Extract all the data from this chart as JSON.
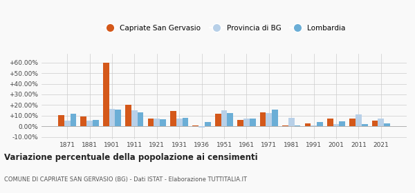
{
  "years": [
    1871,
    1881,
    1901,
    1911,
    1921,
    1931,
    1936,
    1951,
    1961,
    1971,
    1981,
    1991,
    2001,
    2011,
    2021
  ],
  "capriate": [
    10.5,
    9.0,
    59.5,
    20.0,
    7.5,
    14.5,
    0.5,
    11.5,
    6.0,
    13.0,
    1.0,
    2.5,
    7.5,
    7.0,
    5.0
  ],
  "provincia": [
    5.0,
    5.5,
    16.0,
    15.0,
    7.5,
    7.0,
    -1.5,
    15.0,
    7.5,
    12.5,
    8.0,
    0.5,
    2.0,
    11.0,
    7.0
  ],
  "lombardia": [
    11.5,
    6.0,
    15.5,
    13.0,
    6.5,
    8.0,
    4.0,
    12.5,
    7.0,
    15.5,
    0.5,
    4.0,
    4.5,
    2.0,
    2.5
  ],
  "color_capriate": "#d4581a",
  "color_provincia": "#b8d0e8",
  "color_lombardia": "#6baed6",
  "title": "Variazione percentuale della popolazione ai censimenti",
  "subtitle": "COMUNE DI CAPRIATE SAN GERVASIO (BG) - Dati ISTAT - Elaborazione TUTTITALIA.IT",
  "legend_labels": [
    "Capriate San Gervasio",
    "Provincia di BG",
    "Lombardia"
  ],
  "ylim": [
    -12,
    68
  ],
  "yticks": [
    -10,
    0,
    10,
    20,
    30,
    40,
    50,
    60
  ],
  "ytick_labels": [
    "-10.00%",
    "0.00%",
    "+10.00%",
    "+20.00%",
    "+30.00%",
    "+40.00%",
    "+50.00%",
    "+60.00%"
  ],
  "bg_color": "#f9f9f9"
}
